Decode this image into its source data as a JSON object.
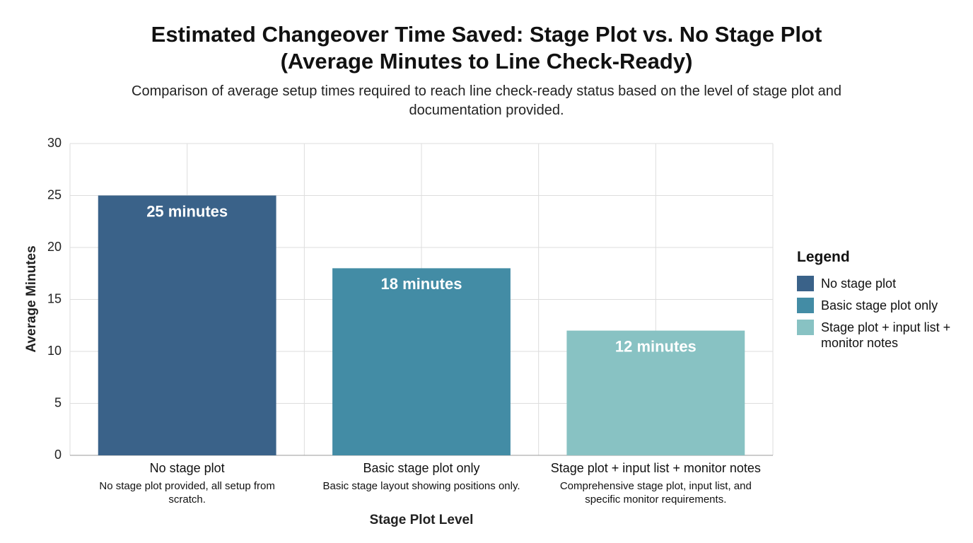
{
  "chart_data": {
    "type": "bar",
    "title": "Estimated Changeover Time Saved: Stage Plot vs. No Stage Plot (Average Minutes to Line Check-Ready)",
    "subtitle": "Comparison of average setup times required to reach line check-ready status based on the level of stage plot and documentation provided.",
    "x_label": "Stage Plot Level",
    "y_label": "Average Minutes",
    "categories": [
      "No stage plot",
      "Basic stage plot only",
      "Stage plot + input list + monitor notes"
    ],
    "category_notes": [
      "No stage plot provided, all setup from scratch.",
      "Basic stage layout showing positions only.",
      "Comprehensive stage plot, input list, and specific monitor requirements."
    ],
    "values": [
      25,
      18,
      12
    ],
    "value_labels": [
      "25 minutes",
      "18 minutes",
      "12 minutes"
    ],
    "colors": [
      "#3a6289",
      "#438ca5",
      "#88c2c3"
    ],
    "ylim": [
      0,
      30
    ],
    "yticks": [
      0,
      5,
      10,
      15,
      20,
      25,
      30
    ],
    "grid": true,
    "legend": {
      "title": "Legend",
      "position": "right"
    }
  }
}
